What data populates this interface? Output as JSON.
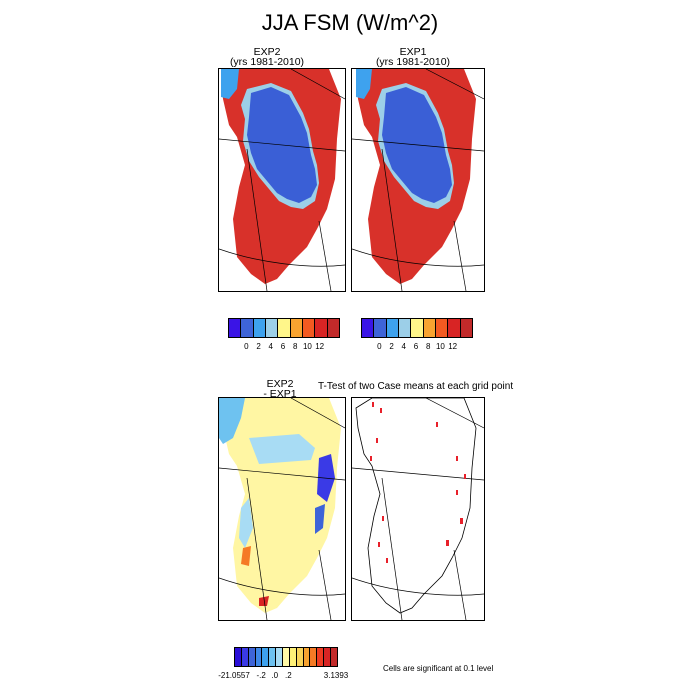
{
  "main_title": "JJA FSM (W/m^2)",
  "panels": {
    "p1": {
      "line1": "EXP2",
      "line2": "(yrs 1981-2010)"
    },
    "p2": {
      "line1": "EXP1",
      "line2": "(yrs 1981-2010)"
    },
    "p3": {
      "line1": "EXP2",
      "line2": "- EXP1"
    },
    "p4": {
      "title": "T-Test of two Case means at each grid point"
    }
  },
  "colorbar_top": {
    "colors": [
      "#3a14e6",
      "#3e64d8",
      "#3ea2ee",
      "#9ccfe8",
      "#fff68a",
      "#f8a330",
      "#f35a21",
      "#d82424",
      "#c22a2a"
    ],
    "labels": [
      "0",
      "2",
      "4",
      "6",
      "8",
      "10",
      "12"
    ]
  },
  "colorbar_bottom": {
    "colors": [
      "#2a0fd8",
      "#3a3ae6",
      "#3e64d8",
      "#3e88e8",
      "#3ea2ee",
      "#6ec2f0",
      "#a8dcf4",
      "#fff9a6",
      "#fff177",
      "#fad55a",
      "#f8a330",
      "#f57a25",
      "#ee3b22",
      "#d82424",
      "#c22a2a"
    ],
    "labels": [
      "-21.0557",
      "-.2",
      ".0",
      ".2",
      "3.1393"
    ]
  },
  "significance_note": "Cells are significant at 0.1 level",
  "colors": {
    "ice_interior": "#3a5fd6",
    "ice_margin": "#d8312a",
    "diff_background": "#fff6a3",
    "significant_cell": "#e8202a"
  }
}
